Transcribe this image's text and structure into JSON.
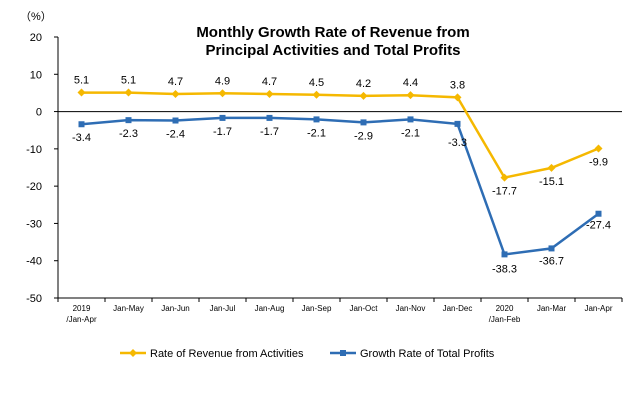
{
  "chart_data": {
    "type": "line",
    "title": [
      "Monthly Growth Rate of Revenue from",
      "Principal Activities  and Total Profits"
    ],
    "unit_label": "（%）",
    "categories": [
      [
        "2019",
        "/Jan-Apr"
      ],
      [
        "Jan-May"
      ],
      [
        "Jan-Jun"
      ],
      [
        "Jan-Jul"
      ],
      [
        "Jan-Aug"
      ],
      [
        "Jan-Sep"
      ],
      [
        "Jan-Oct"
      ],
      [
        "Jan-Nov"
      ],
      [
        "Jan-Dec"
      ],
      [
        "2020",
        "/Jan-Feb"
      ],
      [
        "Jan-Mar"
      ],
      [
        "Jan-Apr"
      ]
    ],
    "ylim": [
      -50,
      20
    ],
    "yticks": [
      20,
      10,
      0,
      -10,
      -20,
      -30,
      -40,
      -50
    ],
    "grid": false,
    "legend_position": "bottom",
    "series": [
      {
        "name": "Rate of Revenue from Activities",
        "color": "#F5B800",
        "marker": "diamond",
        "values": [
          5.1,
          5.1,
          4.7,
          4.9,
          4.7,
          4.5,
          4.2,
          4.4,
          3.8,
          -17.7,
          -15.1,
          -9.9
        ],
        "labels": [
          "5.1",
          "5.1",
          "4.7",
          "4.9",
          "4.7",
          "4.5",
          "4.2",
          "4.4",
          "3.8",
          "-17.7",
          "-15.1",
          "-9.9"
        ]
      },
      {
        "name": "Growth Rate of Total Profits",
        "color": "#2E6DB4",
        "marker": "square",
        "values": [
          -3.4,
          -2.3,
          -2.4,
          -1.7,
          -1.7,
          -2.1,
          -2.9,
          -2.1,
          -3.3,
          -38.3,
          -36.7,
          -27.4
        ],
        "labels": [
          "-3.4",
          "-2.3",
          "-2.4",
          "-1.7",
          "-1.7",
          "-2.1",
          "-2.9",
          "-2.1",
          "-3.3",
          "-38.3",
          "-36.7",
          "-27.4"
        ]
      }
    ]
  }
}
